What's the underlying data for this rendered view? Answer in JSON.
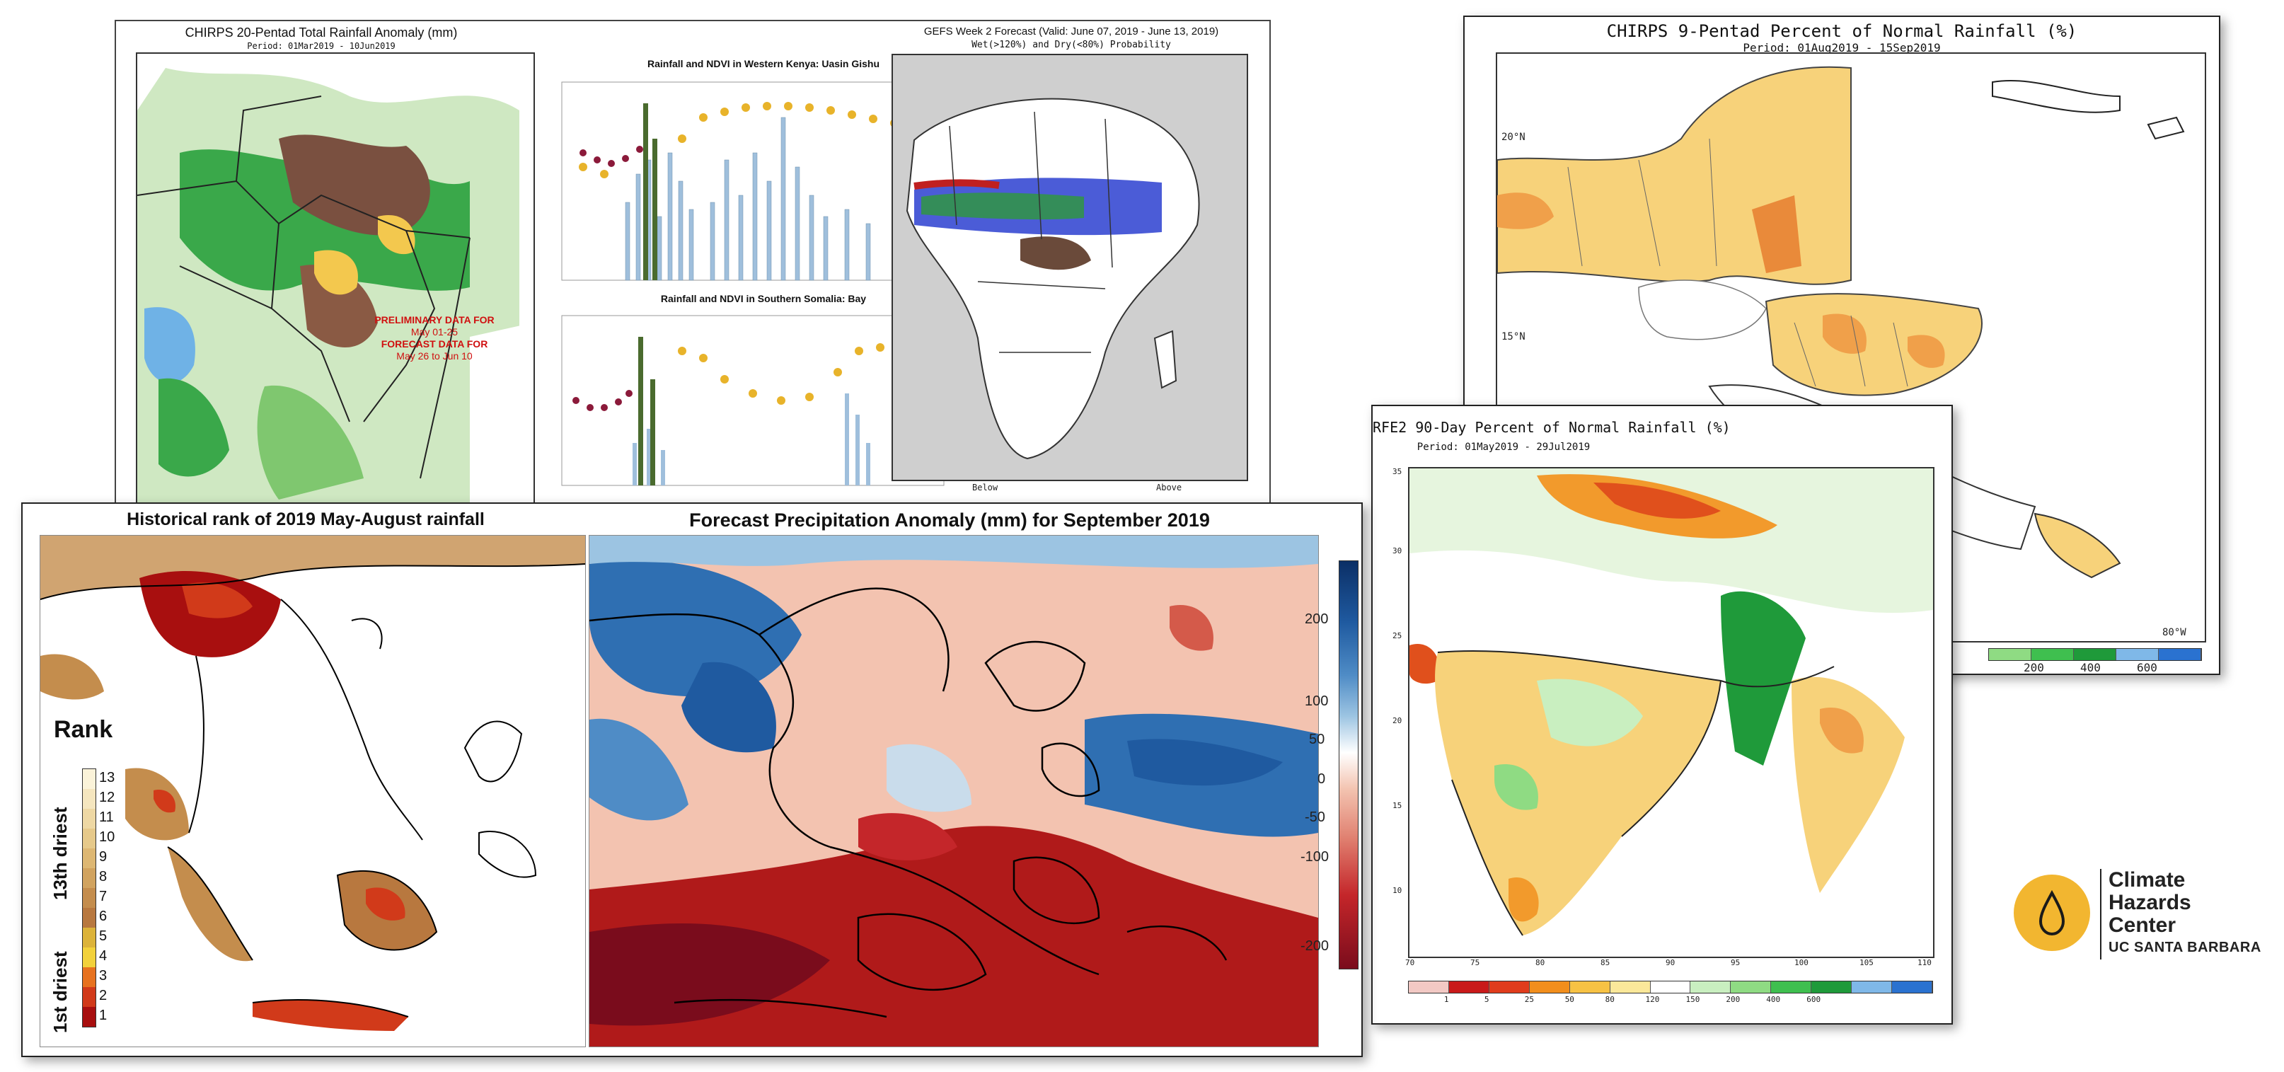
{
  "colors": {
    "dry": "#f3c84e",
    "wet": "#3aa84a",
    "brown": "#8a5a44",
    "blue": "#2f6fb2",
    "red": "#b01a1a",
    "logo_gold": "#f2b630"
  },
  "panel_chirps20": {
    "title": "CHIRPS 20-Pentad Total Rainfall Anomaly (mm)",
    "period": "Period: 01Mar2019 - 10Jun2019",
    "note_line1": "PRELIMINARY DATA FOR",
    "note_line2": "May 01-25",
    "note_line3": "FORECAST DATA FOR",
    "note_line4": "May 26 to Jun 10",
    "chart1_title": "Rainfall and NDVI in Western Kenya: Uasin Gishu",
    "chart2_title": "Rainfall and NDVI in Southern Somalia: Bay",
    "gefs_title": "GEFS Week 2 Forecast (Valid: June 07, 2019 - June 13, 2019)",
    "gefs_sub": "Wet(>120%) and Dry(<80%) Probability",
    "gefs_below": "Below",
    "gefs_above": "Above"
  },
  "panel_chirps9": {
    "title": "CHIRPS 9-Pentad Percent of Normal Rainfall (%)",
    "period": "Period: 01Aug2019 - 15Sep2019",
    "lat_20": "20°N",
    "lat_15": "15°N",
    "lon_80": "80°W",
    "cbar_labels": [
      "200",
      "400",
      "600"
    ]
  },
  "panel_rfe2": {
    "title": "RFE2 90-Day Percent of Normal Rainfall (%)",
    "period": "Period: 01May2019 - 29Jul2019",
    "lats": [
      "35",
      "30",
      "25",
      "20",
      "15",
      "10"
    ],
    "lons": [
      "70",
      "75",
      "80",
      "85",
      "90",
      "95",
      "100",
      "105",
      "110"
    ],
    "cbar_labels": [
      "1",
      "5",
      "25",
      "50",
      "80",
      "120",
      "150",
      "200",
      "400",
      "600"
    ],
    "cbar_colors": [
      "#f2c9c4",
      "#c91a1a",
      "#e03c1c",
      "#f28e1c",
      "#f7c244",
      "#fbe89a",
      "#ffffff",
      "#c9efc0",
      "#8fdb83",
      "#3fbf4f",
      "#1f9a3a",
      "#7fb8e8",
      "#2a72d0"
    ]
  },
  "panel_rank": {
    "title": "Historical rank of 2019 May-August rainfall",
    "legend_title": "Rank",
    "axis_top": "13th driest",
    "axis_bottom": "1st driest",
    "levels": [
      "13",
      "12",
      "11",
      "10",
      "9",
      "8",
      "7",
      "6",
      "5",
      "4",
      "3",
      "2",
      "1"
    ],
    "level_colors": [
      "#fbf3d9",
      "#f5e6bf",
      "#eed8a4",
      "#e6c98a",
      "#ddb773",
      "#d1a35f",
      "#c48d4d",
      "#b8783f",
      "#dcb33a",
      "#f2d13b",
      "#e7721f",
      "#d13a1a",
      "#a80f0f"
    ]
  },
  "panel_forecast": {
    "title": "Forecast Precipitation Anomaly (mm) for September 2019",
    "cbar_labels": [
      "200",
      "100",
      "50",
      "0",
      "-50",
      "-100",
      "-200"
    ]
  },
  "logo": {
    "line1": "Climate",
    "line2": "Hazards",
    "line3": "Center",
    "line4": "UC SANTA BARBARA",
    "icon": "water-drop-icon"
  }
}
